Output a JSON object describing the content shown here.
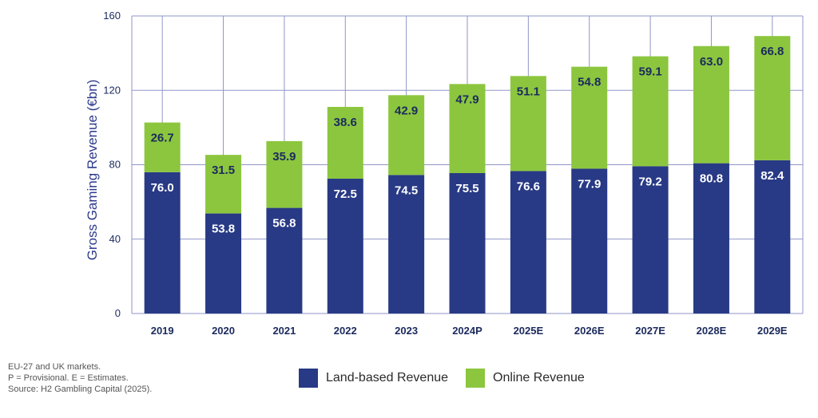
{
  "chart_data": {
    "type": "bar",
    "stacked": true,
    "title": "",
    "xlabel": "",
    "ylabel": "Gross Gaming Revenue (€bn)",
    "ylim": [
      0,
      160
    ],
    "yticks": [
      0,
      40,
      80,
      120,
      160
    ],
    "grid": true,
    "categories": [
      "2019",
      "2020",
      "2021",
      "2022",
      "2023",
      "2024P",
      "2025E",
      "2026E",
      "2027E",
      "2028E",
      "2029E"
    ],
    "series": [
      {
        "name": "Land-based Revenue",
        "color": "#283a85",
        "label_color": "#ffffff",
        "values": [
          76.0,
          53.8,
          56.8,
          72.5,
          74.5,
          75.5,
          76.6,
          77.9,
          79.2,
          80.8,
          82.4
        ],
        "labels": [
          "76.0",
          "53.8",
          "56.8",
          "72.5",
          "74.5",
          "75.5",
          "76.6",
          "77.9",
          "79.2",
          "80.8",
          "82.4"
        ]
      },
      {
        "name": "Online Revenue",
        "color": "#8cc63f",
        "label_color": "#1b2a5e",
        "values": [
          26.7,
          31.5,
          35.9,
          38.6,
          42.9,
          47.9,
          51.1,
          54.8,
          59.1,
          63.0,
          66.8
        ],
        "labels": [
          "26.7",
          "31.5",
          "35.9",
          "38.6",
          "42.9",
          "47.9",
          "51.1",
          "54.8",
          "59.1",
          "63.0",
          "66.8"
        ]
      }
    ],
    "legend_position": "bottom-center"
  },
  "legend": {
    "land_label": "Land-based Revenue",
    "online_label": "Online Revenue"
  },
  "notes": {
    "line1": "EU-27 and UK markets.",
    "line2": "P = Provisional. E = Estimates.",
    "line3": "Source: H2 Gambling Capital (2025)."
  },
  "colors": {
    "grid": "#8f96c8",
    "axis_text": "#1b2a5e"
  }
}
